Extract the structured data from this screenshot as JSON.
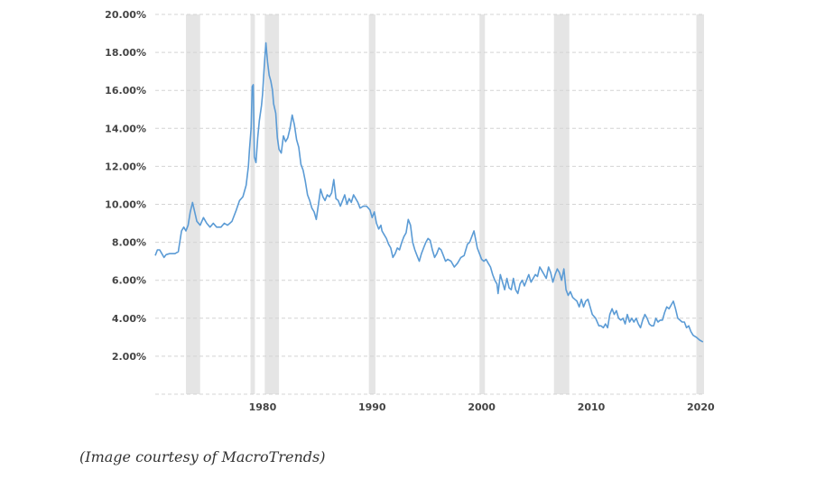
{
  "caption": "(Image courtesy of MacroTrends)",
  "chart_data": {
    "type": "line",
    "title": "",
    "xlabel": "",
    "ylabel": "",
    "xlim": [
      1970.2,
      2020.3
    ],
    "ylim": [
      0,
      20
    ],
    "grid": true,
    "y_ticks": [
      {
        "value": 2,
        "label": "2.00%"
      },
      {
        "value": 4,
        "label": "4.00%"
      },
      {
        "value": 6,
        "label": "6.00%"
      },
      {
        "value": 8,
        "label": "8.00%"
      },
      {
        "value": 10,
        "label": "10.00%"
      },
      {
        "value": 12,
        "label": "12.00%"
      },
      {
        "value": 14,
        "label": "14.00%"
      },
      {
        "value": 16,
        "label": "16.00%"
      },
      {
        "value": 18,
        "label": "18.00%"
      },
      {
        "value": 20,
        "label": "20.00%"
      }
    ],
    "x_ticks": [
      {
        "value": 1980,
        "label": "1980"
      },
      {
        "value": 1990,
        "label": "1990"
      },
      {
        "value": 2000,
        "label": "2000"
      },
      {
        "value": 2010,
        "label": "2010"
      },
      {
        "value": 2020,
        "label": "2020"
      }
    ],
    "shaded_periods": [
      [
        1973.0,
        1974.3
      ],
      [
        1978.9,
        1979.3
      ],
      [
        1980.2,
        1981.5
      ],
      [
        1989.7,
        1990.3
      ],
      [
        1999.8,
        2000.3
      ],
      [
        2006.6,
        2008.0
      ],
      [
        2019.6,
        2020.3
      ]
    ],
    "colors": {
      "line": "#5b9bd5",
      "shade": "#e5e5e5",
      "grid": "#d4d4d4"
    },
    "series": [
      {
        "color": "#5b9bd5",
        "points": [
          [
            1970.2,
            7.3
          ],
          [
            1970.4,
            7.6
          ],
          [
            1970.6,
            7.6
          ],
          [
            1970.8,
            7.4
          ],
          [
            1971.0,
            7.2
          ],
          [
            1971.2,
            7.35
          ],
          [
            1971.5,
            7.4
          ],
          [
            1972.0,
            7.4
          ],
          [
            1972.3,
            7.5
          ],
          [
            1972.6,
            8.6
          ],
          [
            1972.8,
            8.8
          ],
          [
            1973.0,
            8.6
          ],
          [
            1973.2,
            8.9
          ],
          [
            1973.4,
            9.6
          ],
          [
            1973.6,
            10.1
          ],
          [
            1973.8,
            9.6
          ],
          [
            1974.0,
            9.1
          ],
          [
            1974.3,
            8.9
          ],
          [
            1974.6,
            9.3
          ],
          [
            1974.9,
            9.0
          ],
          [
            1975.2,
            8.8
          ],
          [
            1975.5,
            9.0
          ],
          [
            1975.8,
            8.8
          ],
          [
            1976.2,
            8.8
          ],
          [
            1976.5,
            9.0
          ],
          [
            1976.8,
            8.9
          ],
          [
            1977.2,
            9.1
          ],
          [
            1977.6,
            9.7
          ],
          [
            1977.9,
            10.2
          ],
          [
            1978.2,
            10.4
          ],
          [
            1978.5,
            11.0
          ],
          [
            1978.7,
            12.0
          ],
          [
            1978.8,
            12.9
          ],
          [
            1978.95,
            14.0
          ],
          [
            1979.05,
            16.2
          ],
          [
            1979.15,
            16.3
          ],
          [
            1979.25,
            12.5
          ],
          [
            1979.4,
            12.2
          ],
          [
            1979.55,
            13.5
          ],
          [
            1979.7,
            14.4
          ],
          [
            1979.9,
            15.2
          ],
          [
            1980.0,
            15.8
          ],
          [
            1980.15,
            17.3
          ],
          [
            1980.3,
            18.5
          ],
          [
            1980.45,
            17.5
          ],
          [
            1980.6,
            16.8
          ],
          [
            1980.75,
            16.5
          ],
          [
            1980.9,
            16.0
          ],
          [
            1981.0,
            15.3
          ],
          [
            1981.2,
            14.8
          ],
          [
            1981.35,
            13.5
          ],
          [
            1981.5,
            12.9
          ],
          [
            1981.7,
            12.7
          ],
          [
            1981.9,
            13.6
          ],
          [
            1982.1,
            13.3
          ],
          [
            1982.3,
            13.5
          ],
          [
            1982.5,
            14.0
          ],
          [
            1982.7,
            14.7
          ],
          [
            1982.9,
            14.2
          ],
          [
            1983.1,
            13.4
          ],
          [
            1983.3,
            13.0
          ],
          [
            1983.5,
            12.1
          ],
          [
            1983.7,
            11.8
          ],
          [
            1983.9,
            11.2
          ],
          [
            1984.1,
            10.5
          ],
          [
            1984.3,
            10.2
          ],
          [
            1984.5,
            9.8
          ],
          [
            1984.7,
            9.6
          ],
          [
            1984.9,
            9.2
          ],
          [
            1985.1,
            10.0
          ],
          [
            1985.3,
            10.8
          ],
          [
            1985.5,
            10.4
          ],
          [
            1985.7,
            10.2
          ],
          [
            1985.9,
            10.5
          ],
          [
            1986.1,
            10.4
          ],
          [
            1986.3,
            10.6
          ],
          [
            1986.5,
            11.3
          ],
          [
            1986.7,
            10.3
          ],
          [
            1986.9,
            10.2
          ],
          [
            1987.1,
            9.9
          ],
          [
            1987.3,
            10.2
          ],
          [
            1987.5,
            10.5
          ],
          [
            1987.7,
            10.0
          ],
          [
            1987.9,
            10.3
          ],
          [
            1988.1,
            10.1
          ],
          [
            1988.3,
            10.5
          ],
          [
            1988.5,
            10.3
          ],
          [
            1988.7,
            10.1
          ],
          [
            1988.9,
            9.8
          ],
          [
            1989.2,
            9.9
          ],
          [
            1989.5,
            9.9
          ],
          [
            1989.8,
            9.7
          ],
          [
            1990.0,
            9.3
          ],
          [
            1990.2,
            9.6
          ],
          [
            1990.4,
            9.0
          ],
          [
            1990.6,
            8.7
          ],
          [
            1990.8,
            8.9
          ],
          [
            1990.9,
            8.6
          ],
          [
            1991.1,
            8.4
          ],
          [
            1991.3,
            8.2
          ],
          [
            1991.5,
            7.9
          ],
          [
            1991.7,
            7.7
          ],
          [
            1991.9,
            7.2
          ],
          [
            1992.1,
            7.4
          ],
          [
            1992.3,
            7.7
          ],
          [
            1992.5,
            7.6
          ],
          [
            1992.7,
            8.0
          ],
          [
            1992.9,
            8.3
          ],
          [
            1993.1,
            8.5
          ],
          [
            1993.3,
            9.2
          ],
          [
            1993.5,
            8.9
          ],
          [
            1993.7,
            8.0
          ],
          [
            1993.9,
            7.6
          ],
          [
            1994.1,
            7.3
          ],
          [
            1994.3,
            7.0
          ],
          [
            1994.5,
            7.4
          ],
          [
            1994.7,
            7.7
          ],
          [
            1994.9,
            8.0
          ],
          [
            1995.1,
            8.2
          ],
          [
            1995.3,
            8.1
          ],
          [
            1995.5,
            7.6
          ],
          [
            1995.7,
            7.2
          ],
          [
            1995.9,
            7.4
          ],
          [
            1996.1,
            7.7
          ],
          [
            1996.3,
            7.6
          ],
          [
            1996.5,
            7.3
          ],
          [
            1996.7,
            7.0
          ],
          [
            1996.9,
            7.1
          ],
          [
            1997.2,
            7.0
          ],
          [
            1997.5,
            6.7
          ],
          [
            1997.8,
            6.9
          ],
          [
            1998.1,
            7.2
          ],
          [
            1998.4,
            7.3
          ],
          [
            1998.7,
            7.9
          ],
          [
            1998.9,
            8.0
          ],
          [
            1999.1,
            8.3
          ],
          [
            1999.3,
            8.6
          ],
          [
            1999.5,
            8.0
          ],
          [
            1999.6,
            7.7
          ],
          [
            1999.8,
            7.4
          ],
          [
            2000.0,
            7.1
          ],
          [
            2000.2,
            7.0
          ],
          [
            2000.4,
            7.1
          ],
          [
            2000.6,
            6.9
          ],
          [
            2000.8,
            6.7
          ],
          [
            2001.0,
            6.3
          ],
          [
            2001.2,
            6.0
          ],
          [
            2001.4,
            5.8
          ],
          [
            2001.5,
            5.3
          ],
          [
            2001.7,
            6.3
          ],
          [
            2001.9,
            5.9
          ],
          [
            2002.1,
            5.5
          ],
          [
            2002.3,
            6.1
          ],
          [
            2002.5,
            5.6
          ],
          [
            2002.7,
            5.5
          ],
          [
            2002.9,
            6.1
          ],
          [
            2003.1,
            5.5
          ],
          [
            2003.3,
            5.3
          ],
          [
            2003.5,
            5.8
          ],
          [
            2003.7,
            6.0
          ],
          [
            2003.9,
            5.7
          ],
          [
            2004.1,
            6.0
          ],
          [
            2004.3,
            6.3
          ],
          [
            2004.5,
            5.9
          ],
          [
            2004.7,
            6.1
          ],
          [
            2004.9,
            6.3
          ],
          [
            2005.1,
            6.2
          ],
          [
            2005.3,
            6.7
          ],
          [
            2005.5,
            6.5
          ],
          [
            2005.7,
            6.3
          ],
          [
            2005.9,
            6.1
          ],
          [
            2006.1,
            6.7
          ],
          [
            2006.3,
            6.4
          ],
          [
            2006.5,
            5.9
          ],
          [
            2006.7,
            6.3
          ],
          [
            2006.9,
            6.6
          ],
          [
            2007.1,
            6.4
          ],
          [
            2007.3,
            6.0
          ],
          [
            2007.5,
            6.6
          ],
          [
            2007.7,
            5.5
          ],
          [
            2007.9,
            5.2
          ],
          [
            2008.1,
            5.4
          ],
          [
            2008.3,
            5.1
          ],
          [
            2008.5,
            5.0
          ],
          [
            2008.7,
            4.9
          ],
          [
            2008.9,
            4.6
          ],
          [
            2009.1,
            5.0
          ],
          [
            2009.3,
            4.6
          ],
          [
            2009.5,
            4.9
          ],
          [
            2009.7,
            5.0
          ],
          [
            2009.9,
            4.6
          ],
          [
            2010.1,
            4.2
          ],
          [
            2010.4,
            4.0
          ],
          [
            2010.7,
            3.6
          ],
          [
            2010.9,
            3.6
          ],
          [
            2011.1,
            3.5
          ],
          [
            2011.3,
            3.7
          ],
          [
            2011.5,
            3.5
          ],
          [
            2011.7,
            4.2
          ],
          [
            2011.9,
            4.5
          ],
          [
            2012.1,
            4.2
          ],
          [
            2012.3,
            4.4
          ],
          [
            2012.5,
            4.0
          ],
          [
            2012.7,
            3.9
          ],
          [
            2012.9,
            4.0
          ],
          [
            2013.1,
            3.7
          ],
          [
            2013.3,
            4.2
          ],
          [
            2013.5,
            3.8
          ],
          [
            2013.7,
            4.0
          ],
          [
            2013.9,
            3.8
          ],
          [
            2014.1,
            4.0
          ],
          [
            2014.3,
            3.7
          ],
          [
            2014.5,
            3.5
          ],
          [
            2014.7,
            3.9
          ],
          [
            2014.9,
            4.2
          ],
          [
            2015.1,
            4.0
          ],
          [
            2015.3,
            3.7
          ],
          [
            2015.5,
            3.6
          ],
          [
            2015.7,
            3.6
          ],
          [
            2015.9,
            4.0
          ],
          [
            2016.1,
            3.8
          ],
          [
            2016.3,
            3.9
          ],
          [
            2016.5,
            3.9
          ],
          [
            2016.7,
            4.3
          ],
          [
            2016.9,
            4.6
          ],
          [
            2017.1,
            4.5
          ],
          [
            2017.3,
            4.7
          ],
          [
            2017.5,
            4.9
          ],
          [
            2017.7,
            4.5
          ],
          [
            2017.9,
            4.0
          ],
          [
            2018.1,
            3.9
          ],
          [
            2018.3,
            3.8
          ],
          [
            2018.5,
            3.8
          ],
          [
            2018.7,
            3.5
          ],
          [
            2018.9,
            3.6
          ],
          [
            2019.1,
            3.3
          ],
          [
            2019.3,
            3.1
          ],
          [
            2019.6,
            3.0
          ],
          [
            2019.9,
            2.85
          ],
          [
            2020.2,
            2.75
          ]
        ]
      }
    ]
  }
}
